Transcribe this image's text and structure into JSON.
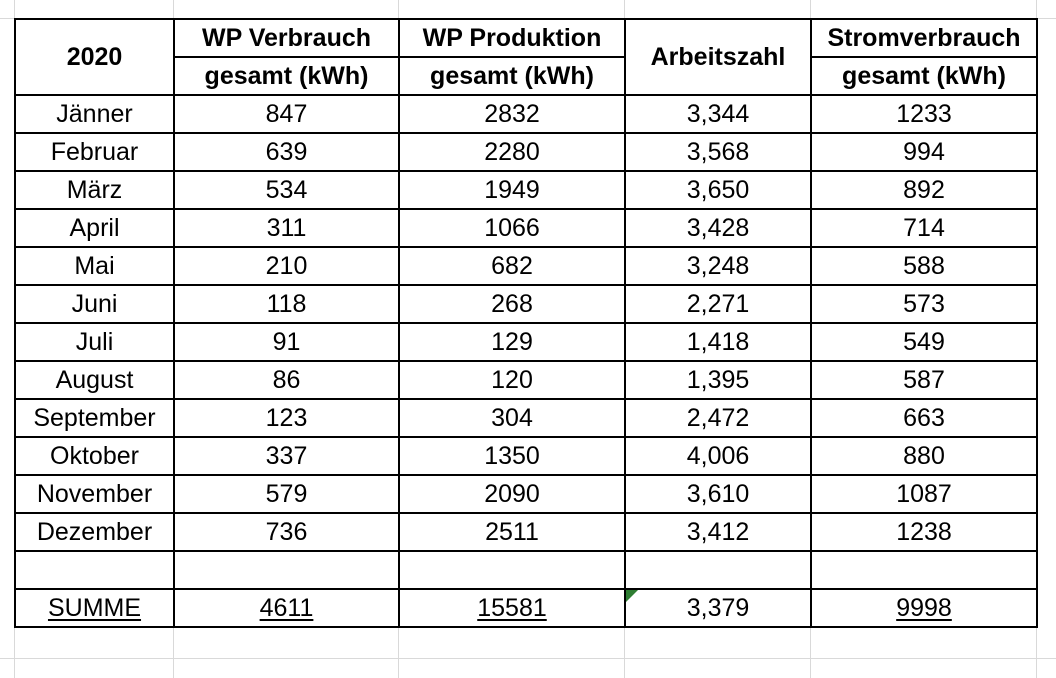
{
  "header": {
    "year": "2020",
    "col_wp_verbrauch": "WP Verbrauch",
    "col_wp_produktion": "WP Produktion",
    "col_arbeitszahl": "Arbeitszahl",
    "col_stromverbrauch": "Stromverbrauch",
    "unit": "gesamt (kWh)"
  },
  "rows": [
    {
      "month": "Jänner",
      "wp_verbrauch": "847",
      "wp_produktion": "2832",
      "arbeitszahl": "3,344",
      "strom": "1233"
    },
    {
      "month": "Februar",
      "wp_verbrauch": "639",
      "wp_produktion": "2280",
      "arbeitszahl": "3,568",
      "strom": "994"
    },
    {
      "month": "März",
      "wp_verbrauch": "534",
      "wp_produktion": "1949",
      "arbeitszahl": "3,650",
      "strom": "892"
    },
    {
      "month": "April",
      "wp_verbrauch": "311",
      "wp_produktion": "1066",
      "arbeitszahl": "3,428",
      "strom": "714"
    },
    {
      "month": "Mai",
      "wp_verbrauch": "210",
      "wp_produktion": "682",
      "arbeitszahl": "3,248",
      "strom": "588"
    },
    {
      "month": "Juni",
      "wp_verbrauch": "118",
      "wp_produktion": "268",
      "arbeitszahl": "2,271",
      "strom": "573"
    },
    {
      "month": "Juli",
      "wp_verbrauch": "91",
      "wp_produktion": "129",
      "arbeitszahl": "1,418",
      "strom": "549"
    },
    {
      "month": "August",
      "wp_verbrauch": "86",
      "wp_produktion": "120",
      "arbeitszahl": "1,395",
      "strom": "587"
    },
    {
      "month": "September",
      "wp_verbrauch": "123",
      "wp_produktion": "304",
      "arbeitszahl": "2,472",
      "strom": "663"
    },
    {
      "month": "Oktober",
      "wp_verbrauch": "337",
      "wp_produktion": "1350",
      "arbeitszahl": "4,006",
      "strom": "880"
    },
    {
      "month": "November",
      "wp_verbrauch": "579",
      "wp_produktion": "2090",
      "arbeitszahl": "3,610",
      "strom": "1087"
    },
    {
      "month": "Dezember",
      "wp_verbrauch": "736",
      "wp_produktion": "2511",
      "arbeitszahl": "3,412",
      "strom": "1238"
    }
  ],
  "summary": {
    "label": "SUMME",
    "wp_verbrauch": "4611",
    "wp_produktion": "15581",
    "arbeitszahl": "3,379",
    "strom": "9998"
  },
  "colors": {
    "header_fill": "#d9d9d9",
    "gridline": "#d9d9d9",
    "error_flag": "#2e7d32"
  }
}
